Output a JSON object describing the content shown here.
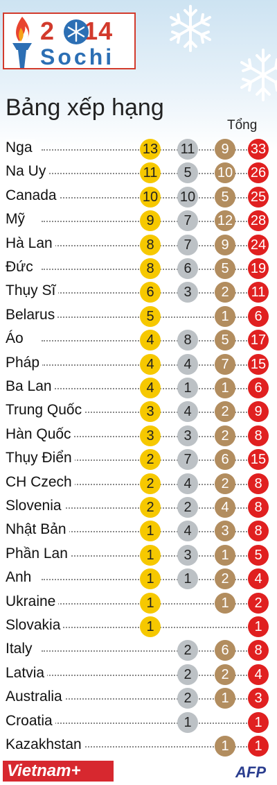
{
  "logo": {
    "year_left": "2",
    "year_right": "14",
    "city": "Sochi"
  },
  "title": "Bảng xếp hạng",
  "total_header": "Tổng",
  "colors": {
    "gold": "#f6c800",
    "silver": "#bcc1c5",
    "bronze": "#b28d5f",
    "total": "#e02020"
  },
  "rows": [
    {
      "country": "Nga",
      "gold": "13",
      "silver": "11",
      "bronze": "9",
      "total": "33"
    },
    {
      "country": "Na Uy",
      "gold": "11",
      "silver": "5",
      "bronze": "10",
      "total": "26"
    },
    {
      "country": "Canada",
      "gold": "10",
      "silver": "10",
      "bronze": "5",
      "total": "25"
    },
    {
      "country": "Mỹ",
      "gold": "9",
      "silver": "7",
      "bronze": "12",
      "total": "28"
    },
    {
      "country": "Hà Lan",
      "gold": "8",
      "silver": "7",
      "bronze": "9",
      "total": "24"
    },
    {
      "country": "Đức",
      "gold": "8",
      "silver": "6",
      "bronze": "5",
      "total": "19"
    },
    {
      "country": "Thụy Sĩ",
      "gold": "6",
      "silver": "3",
      "bronze": "2",
      "total": "11"
    },
    {
      "country": "Belarus",
      "gold": "5",
      "silver": "",
      "bronze": "1",
      "total": "6"
    },
    {
      "country": "Áo",
      "gold": "4",
      "silver": "8",
      "bronze": "5",
      "total": "17"
    },
    {
      "country": "Pháp",
      "gold": "4",
      "silver": "4",
      "bronze": "7",
      "total": "15"
    },
    {
      "country": "Ba Lan",
      "gold": "4",
      "silver": "1",
      "bronze": "1",
      "total": "6"
    },
    {
      "country": "Trung Quốc",
      "gold": "3",
      "silver": "4",
      "bronze": "2",
      "total": "9"
    },
    {
      "country": "Hàn Quốc",
      "gold": "3",
      "silver": "3",
      "bronze": "2",
      "total": "8"
    },
    {
      "country": "Thụy Điển",
      "gold": "2",
      "silver": "7",
      "bronze": "6",
      "total": "15"
    },
    {
      "country": "CH Czech",
      "gold": "2",
      "silver": "4",
      "bronze": "2",
      "total": "8"
    },
    {
      "country": "Slovenia",
      "gold": "2",
      "silver": "2",
      "bronze": "4",
      "total": "8"
    },
    {
      "country": "Nhật Bản",
      "gold": "1",
      "silver": "4",
      "bronze": "3",
      "total": "8"
    },
    {
      "country": "Phần Lan",
      "gold": "1",
      "silver": "3",
      "bronze": "1",
      "total": "5"
    },
    {
      "country": "Anh",
      "gold": "1",
      "silver": "1",
      "bronze": "2",
      "total": "4"
    },
    {
      "country": "Ukraine",
      "gold": "1",
      "silver": "",
      "bronze": "1",
      "total": "2"
    },
    {
      "country": "Slovakia",
      "gold": "1",
      "silver": "",
      "bronze": "",
      "total": "1"
    },
    {
      "country": "Italy",
      "gold": "",
      "silver": "2",
      "bronze": "6",
      "total": "8"
    },
    {
      "country": "Latvia",
      "gold": "",
      "silver": "2",
      "bronze": "2",
      "total": "4"
    },
    {
      "country": "Australia",
      "gold": "",
      "silver": "2",
      "bronze": "1",
      "total": "3"
    },
    {
      "country": "Croatia",
      "gold": "",
      "silver": "1",
      "bronze": "",
      "total": "1"
    },
    {
      "country": "Kazakhstan",
      "gold": "",
      "silver": "",
      "bronze": "1",
      "total": "1"
    }
  ],
  "footer": {
    "brand": "Vietnam+",
    "source": "AFP"
  }
}
